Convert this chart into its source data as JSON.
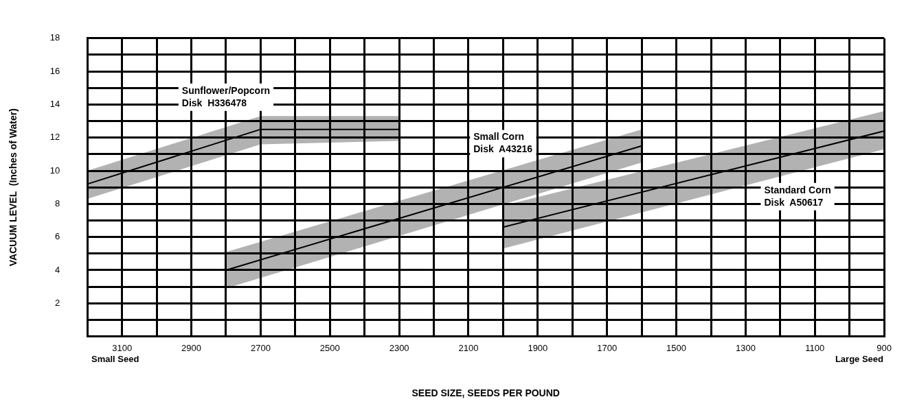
{
  "chart_data": {
    "type": "line",
    "xlabel": "SEED SIZE, SEEDS PER POUND",
    "ylabel": "VACUUM LEVEL  (Inches of Water)",
    "annotations": [
      "Small Seed",
      "Large Seed"
    ],
    "xlim": [
      3200,
      900
    ],
    "ylim": [
      0,
      18
    ],
    "xticks": [
      {
        "value": 3200,
        "label": null
      },
      3100,
      {
        "value": 3000,
        "label": null
      },
      2900,
      {
        "value": 2800,
        "label": null
      },
      2700,
      {
        "value": 2600,
        "label": null
      },
      2500,
      {
        "value": 2400,
        "label": null
      },
      2300,
      {
        "value": 2200,
        "label": null
      },
      2100,
      {
        "value": 2000,
        "label": null
      },
      1900,
      {
        "value": 1800,
        "label": null
      },
      1700,
      {
        "value": 1600,
        "label": null
      },
      1500,
      {
        "value": 1400,
        "label": null
      },
      1300,
      {
        "value": 1200,
        "label": null
      },
      1100,
      {
        "value": 1000,
        "label": null
      },
      900
    ],
    "yticks": [
      {
        "value": 0,
        "label": null
      },
      {
        "value": 1,
        "label": null
      },
      2,
      {
        "value": 3,
        "label": null
      },
      4,
      {
        "value": 5,
        "label": null
      },
      6,
      {
        "value": 7,
        "label": null
      },
      8,
      {
        "value": 9,
        "label": null
      },
      10,
      {
        "value": 11,
        "label": null
      },
      12,
      {
        "value": 13,
        "label": null
      },
      14,
      {
        "value": 15,
        "label": null
      },
      16,
      {
        "value": 17,
        "label": null
      },
      18
    ],
    "grid": true,
    "legend": false,
    "series": [
      {
        "name": "Sunflower/Popcorn\nDisk  H336478",
        "color": "#000000",
        "x": [
          3200,
          2700,
          2300
        ],
        "values": [
          9.2,
          12.5,
          12.5
        ],
        "lower": [
          8.3,
          11.6,
          11.8
        ],
        "upper": [
          10.0,
          13.3,
          13.3
        ]
      },
      {
        "name": "Small Corn\nDisk  A43216",
        "color": "#000000",
        "x": [
          2800,
          1600
        ],
        "values": [
          4.0,
          11.5
        ],
        "lower": [
          2.9,
          10.5
        ],
        "upper": [
          5.1,
          12.5
        ]
      },
      {
        "name": "Standard Corn\nDisk  A50617",
        "color": "#000000",
        "x": [
          2000,
          900
        ],
        "values": [
          6.6,
          12.4
        ],
        "lower": [
          5.3,
          11.3
        ],
        "upper": [
          7.9,
          13.6
        ]
      }
    ]
  }
}
